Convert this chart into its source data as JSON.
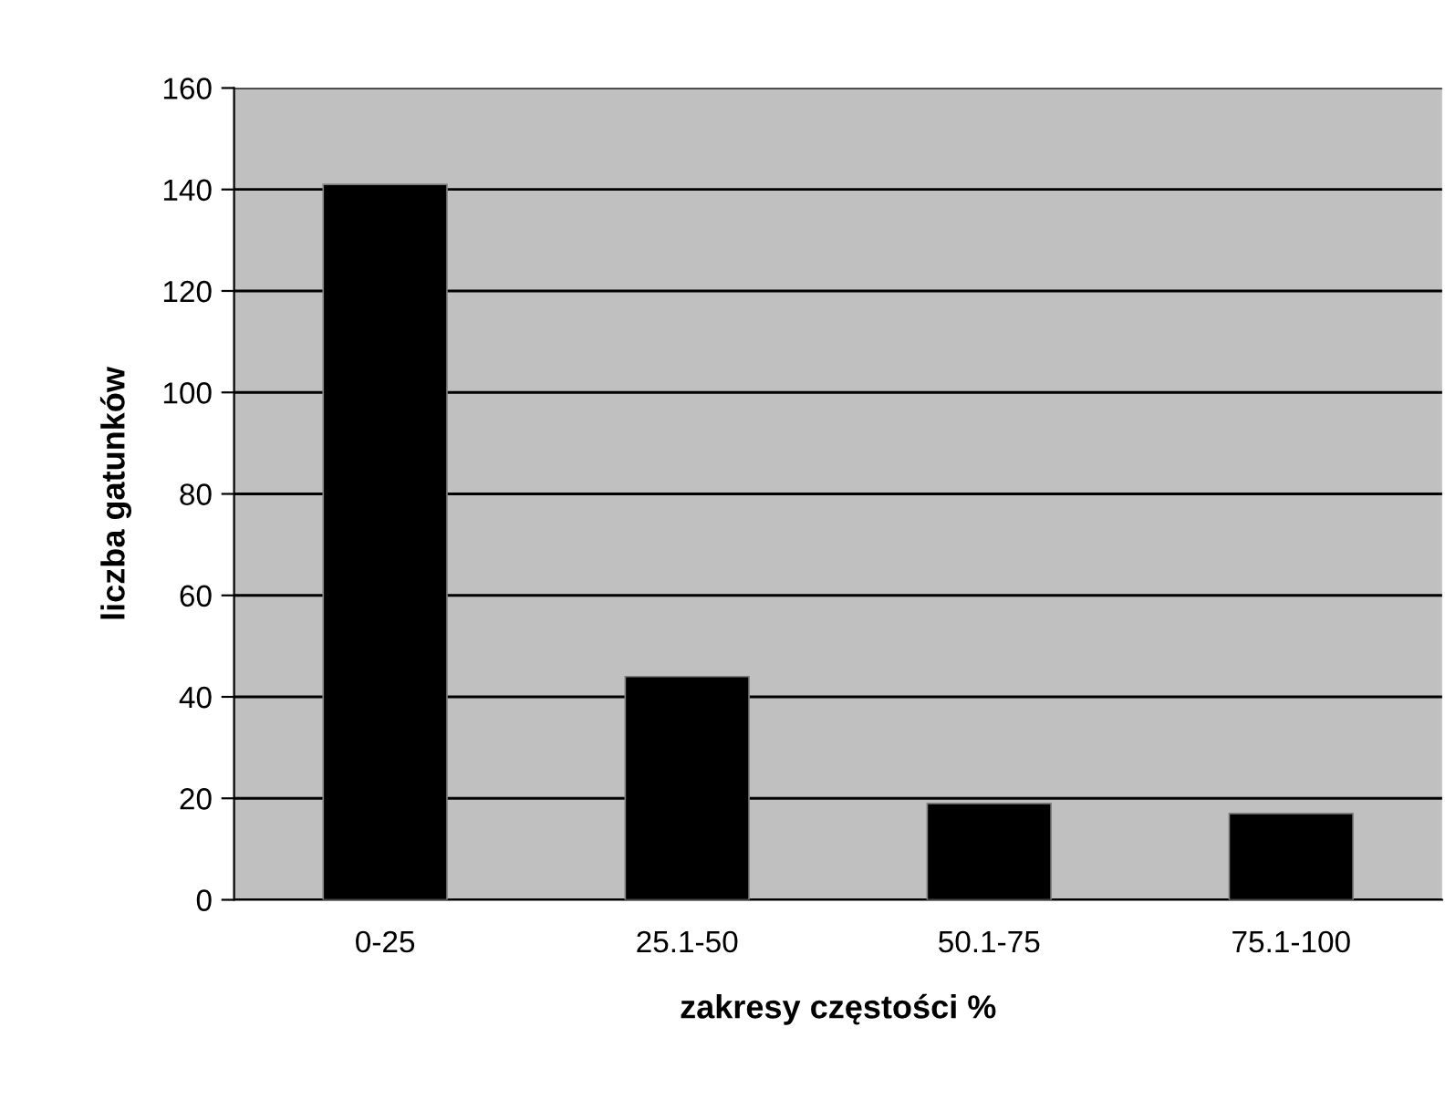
{
  "chart_data": {
    "type": "bar",
    "xlabel": "zakresy częstości %",
    "ylabel": "liczba gatunków",
    "categories": [
      "0-25",
      "25.1-50",
      "50.1-75",
      "75.1-100"
    ],
    "values": [
      141,
      44,
      19,
      17
    ],
    "color": "#000000",
    "ylim": [
      0,
      160
    ],
    "yticks": [
      0,
      20,
      40,
      60,
      80,
      100,
      120,
      140,
      160
    ],
    "grid": "y"
  }
}
